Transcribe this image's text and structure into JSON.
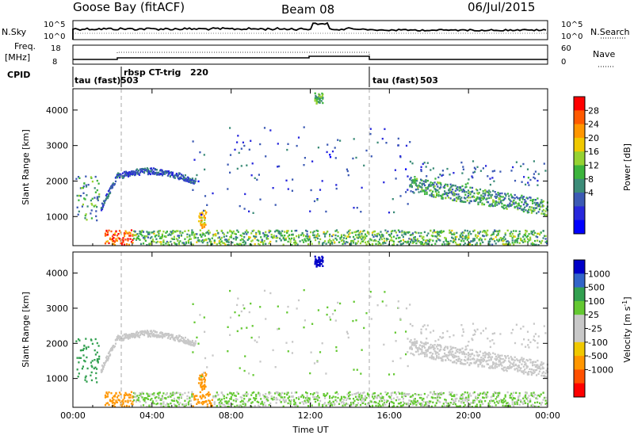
{
  "header": {
    "station": "Goose Bay (fitACF)",
    "beam": "Beam 08",
    "date": "06/Jul/2015"
  },
  "top_panels": {
    "noise": {
      "left_label": "N.Sky",
      "left_ticks": [
        "10^5",
        "10^0"
      ],
      "right_ticks": [
        "10^5",
        "10^0"
      ],
      "right_label": "N.Search"
    },
    "freq": {
      "left_label_1": "Freq.",
      "left_label_2": "[MHz]",
      "left_ticks": [
        "18",
        "8"
      ],
      "right_ticks": [
        "60",
        "0"
      ],
      "right_label": "Nave"
    },
    "cpid": {
      "label": "CPID",
      "segments": [
        {
          "label": "tau (fast)",
          "id": "503"
        },
        {
          "label": "rbsp CT-trig",
          "id": "220"
        },
        {
          "label": "tau (fast)",
          "id": "503"
        }
      ]
    }
  },
  "chart_data": [
    {
      "type": "heatmap",
      "name": "Power",
      "ylabel": "Slant Range [km]",
      "xlabel": "Time UT",
      "xlim_hours": [
        0,
        24
      ],
      "ylim": [
        180,
        4600
      ],
      "y_ticks": [
        "1000",
        "2000",
        "3000",
        "4000"
      ],
      "x_ticks": [
        "00:00",
        "04:00",
        "08:00",
        "12:00",
        "16:00",
        "20:00",
        "00:00"
      ],
      "colorbar": {
        "label": "Power [dB]",
        "ticks": [
          "28",
          "24",
          "20",
          "16",
          "12",
          "8",
          "4"
        ],
        "colors": [
          "#ff0000",
          "#ff5a00",
          "#ff9600",
          "#f0c800",
          "#96d232",
          "#3cb43c",
          "#3c8c78",
          "#3c5ab4",
          "#2828dc",
          "#0000ff"
        ]
      },
      "features": [
        {
          "desc": "ground scatter band",
          "t_start": 1.5,
          "t_end": 24,
          "r_start": 200,
          "r_end": 700,
          "typical_db": 14
        },
        {
          "desc": "arc",
          "t_start": 1.0,
          "t_end": 6.0,
          "r_start": 1000,
          "r_end": 2300,
          "typical_db": 8
        },
        {
          "desc": "evening band",
          "t_start": 17,
          "t_end": 24,
          "r_start": 1200,
          "r_end": 2200,
          "typical_db": 12
        },
        {
          "desc": "blob",
          "t_center": 6.5,
          "r_center": 900,
          "typical_db": 20
        }
      ]
    },
    {
      "type": "heatmap",
      "name": "Velocity",
      "ylabel": "Slant Range [km]",
      "xlabel": "Time UT",
      "xlim_hours": [
        0,
        24
      ],
      "ylim": [
        180,
        4600
      ],
      "y_ticks": [
        "1000",
        "2000",
        "3000",
        "4000"
      ],
      "x_ticks": [
        "00:00",
        "04:00",
        "08:00",
        "12:00",
        "16:00",
        "20:00",
        "00:00"
      ],
      "colorbar": {
        "label_main": "Velocity  [m s",
        "label_exp": "-1",
        "label_end": "]",
        "ticks": [
          "1000",
          "500",
          "100",
          "25",
          "-25",
          "-100",
          "-500",
          "-1000"
        ],
        "colors": [
          "#0000c8",
          "#3264c8",
          "#32a050",
          "#64c832",
          "#c8c8c8",
          "#c8c8c8",
          "#f0c800",
          "#ff9600",
          "#ff5000",
          "#ff0000"
        ]
      }
    }
  ]
}
